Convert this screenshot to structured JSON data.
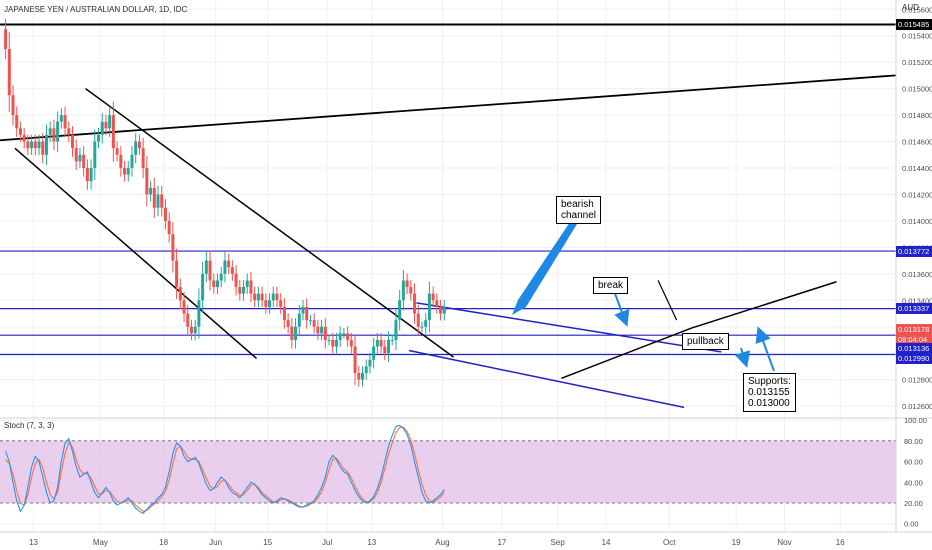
{
  "title": "JAPANESE YEN / AUSTRALIAN DOLLAR, 1D, IDC",
  "currency_label": "AUD",
  "chart_data": {
    "type": "candlestick",
    "title": "JAPANESE YEN / AUSTRALIAN DOLLAR, 1D, IDC",
    "ylim": [
      0.01251,
      0.01567
    ],
    "y_ticks": [
      0.0126,
      0.0128,
      0.013,
      0.0132,
      0.0134,
      0.0136,
      0.0138,
      0.014,
      0.0142,
      0.0144,
      0.0146,
      0.0148,
      0.015,
      0.0152,
      0.0154,
      0.0156
    ],
    "y_tick_labels": [
      "0.012600",
      "0.012800",
      "0.013000",
      "0.013200",
      "0.013400",
      "0.013600",
      "0.013800",
      "0.014000",
      "0.014200",
      "0.014400",
      "0.014600",
      "0.014800",
      "0.015000",
      "0.015200",
      "0.015400",
      "0.015600"
    ],
    "x_ticks": [
      {
        "label": "13",
        "day": 9
      },
      {
        "label": "May",
        "day": 27
      },
      {
        "label": "18",
        "day": 44
      },
      {
        "label": "Jun",
        "day": 58
      },
      {
        "label": "15",
        "day": 72
      },
      {
        "label": "Jul",
        "day": 88
      },
      {
        "label": "13",
        "day": 100
      },
      {
        "label": "Aug",
        "day": 119
      },
      {
        "label": "17",
        "day": 135
      },
      {
        "label": "Sep",
        "day": 150
      },
      {
        "label": "14",
        "day": 163
      },
      {
        "label": "Oct",
        "day": 180
      },
      {
        "label": "19",
        "day": 198
      },
      {
        "label": "Nov",
        "day": 211
      },
      {
        "label": "16",
        "day": 226
      }
    ],
    "days_range": [
      0,
      241
    ],
    "closes": [
      0.0153,
      0.01495,
      0.0148,
      0.0147,
      0.01465,
      0.0146,
      0.01455,
      0.0146,
      0.01455,
      0.0146,
      0.0145,
      0.01465,
      0.0147,
      0.0146,
      0.01475,
      0.0148,
      0.0147,
      0.01465,
      0.01455,
      0.01445,
      0.0145,
      0.0144,
      0.0143,
      0.0144,
      0.0146,
      0.01465,
      0.01475,
      0.0147,
      0.0148,
      0.01455,
      0.0145,
      0.0144,
      0.01435,
      0.0144,
      0.0145,
      0.0146,
      0.01455,
      0.0144,
      0.0142,
      0.01425,
      0.0141,
      0.0142,
      0.0141,
      0.014,
      0.0139,
      0.0137,
      0.0135,
      0.0134,
      0.0133,
      0.0132,
      0.01315,
      0.0132,
      0.0134,
      0.0136,
      0.0137,
      0.01355,
      0.0135,
      0.01355,
      0.0136,
      0.0137,
      0.01365,
      0.0136,
      0.0135,
      0.01345,
      0.0135,
      0.01355,
      0.01345,
      0.0134,
      0.01345,
      0.0134,
      0.01335,
      0.0134,
      0.01345,
      0.0134,
      0.01335,
      0.01325,
      0.0132,
      0.0131,
      0.0132,
      0.0133,
      0.01335,
      0.01325,
      0.01325,
      0.0132,
      0.01315,
      0.0132,
      0.0131,
      0.0131,
      0.01305,
      0.0131,
      0.01315,
      0.01315,
      0.0131,
      0.01305,
      0.01285,
      0.0128,
      0.01285,
      0.0129,
      0.01295,
      0.01305,
      0.0131,
      0.01305,
      0.013,
      0.0131,
      0.0131,
      0.01325,
      0.0134,
      0.01355,
      0.0135,
      0.01345,
      0.0133,
      0.0132,
      0.0132,
      0.01325,
      0.01345,
      0.0134,
      0.01335,
      0.0133,
      0.01335
    ],
    "annotations": {
      "bearish_channel": "bearish\nchannel",
      "break": "break",
      "pullback": "pullback",
      "supports": "Supports:\n0.013155\n0.013000"
    },
    "horizontal_levels": [
      0.015485,
      0.013772,
      0.013337,
      0.013136,
      0.01299
    ],
    "price_tags": [
      {
        "value": 0.015485,
        "label": "0.015485",
        "bg": "#000000",
        "fg": "#ffffff"
      },
      {
        "value": 0.013772,
        "label": "0.013772",
        "bg": "#2121c8",
        "fg": "#ffffff"
      },
      {
        "value": 0.013337,
        "label": "0.013337",
        "bg": "#2121c8",
        "fg": "#ffffff"
      },
      {
        "value": 0.013178,
        "label": "0.013178",
        "bg": "#ef5350",
        "fg": "#ffffff"
      },
      {
        "value": 0.0131,
        "label": "08:04:04",
        "bg": "#ef5350",
        "fg": "#ffffff"
      },
      {
        "value": 0.013036,
        "label": "0.013136",
        "bg": "#2121c8",
        "fg": "#ffffff"
      },
      {
        "value": 0.01296,
        "label": "0.012990",
        "bg": "#2121c8",
        "fg": "#ffffff"
      }
    ],
    "stoch": {
      "title": "Stoch (7, 3, 3)",
      "ylim": [
        -8,
        102
      ],
      "y_ticks": [
        0,
        20,
        40,
        60,
        80,
        100
      ],
      "y_tick_labels": [
        "0.00",
        "20.00",
        "40.00",
        "60.00",
        "80.00",
        "100.00"
      ],
      "band": [
        20,
        80
      ],
      "k": [
        70,
        60,
        40,
        22,
        12,
        18,
        35,
        55,
        65,
        60,
        45,
        30,
        20,
        22,
        35,
        60,
        78,
        82,
        70,
        55,
        45,
        48,
        50,
        40,
        30,
        25,
        30,
        35,
        30,
        22,
        18,
        20,
        22,
        25,
        20,
        15,
        12,
        10,
        14,
        18,
        20,
        25,
        28,
        35,
        50,
        68,
        78,
        75,
        65,
        60,
        62,
        64,
        58,
        48,
        38,
        32,
        34,
        40,
        45,
        42,
        35,
        30,
        28,
        25,
        30,
        35,
        40,
        38,
        33,
        28,
        25,
        22,
        20,
        22,
        25,
        24,
        22,
        20,
        18,
        16,
        16,
        18,
        20,
        22,
        28,
        35,
        45,
        60,
        66,
        62,
        55,
        50,
        48,
        40,
        32,
        26,
        22,
        20,
        22,
        26,
        34,
        45,
        60,
        75,
        85,
        94,
        95,
        92,
        86,
        76,
        60,
        45,
        30,
        22,
        20,
        22,
        25,
        28,
        33
      ],
      "d": [
        62,
        58,
        48,
        32,
        20,
        18,
        28,
        45,
        58,
        62,
        54,
        40,
        28,
        24,
        30,
        50,
        68,
        78,
        74,
        62,
        52,
        48,
        48,
        44,
        36,
        29,
        29,
        32,
        31,
        26,
        22,
        20,
        21,
        23,
        22,
        18,
        15,
        12,
        13,
        16,
        19,
        22,
        26,
        31,
        42,
        58,
        72,
        75,
        70,
        64,
        62,
        62,
        60,
        52,
        44,
        36,
        34,
        36,
        41,
        42,
        38,
        33,
        30,
        27,
        28,
        32,
        37,
        38,
        35,
        30,
        27,
        24,
        21,
        21,
        23,
        24,
        23,
        21,
        19,
        17,
        16,
        17,
        19,
        21,
        25,
        31,
        40,
        52,
        62,
        63,
        58,
        53,
        50,
        44,
        36,
        29,
        24,
        21,
        21,
        24,
        30,
        40,
        53,
        67,
        78,
        88,
        93,
        93,
        89,
        81,
        68,
        52,
        38,
        28,
        22,
        21,
        23,
        26,
        30
      ]
    },
    "candle_color_up": "#26a69a",
    "candle_color_down": "#ef5350"
  }
}
